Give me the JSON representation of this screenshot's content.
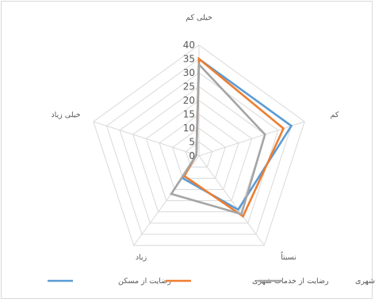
{
  "chart_data": {
    "type": "radar",
    "title": "",
    "categories": [
      "خیلی کم",
      "کم",
      "نسبتاً",
      "زیاد",
      "خیلی زیاد"
    ],
    "r_ticks": [
      0,
      5,
      10,
      15,
      20,
      25,
      30,
      35,
      40
    ],
    "rlim": [
      0,
      40
    ],
    "grid": true,
    "legend_position": "bottom",
    "series": [
      {
        "name": "رضایت از مسکن",
        "color": "#5b9bd5",
        "values": [
          35,
          35,
          24,
          10,
          1
        ]
      },
      {
        "name": "رضایت از خدمات شهری",
        "color": "#ed7d31",
        "values": [
          35,
          32,
          27,
          9,
          1
        ]
      },
      {
        "name": "رضایت از فضاهای شهری",
        "color": "#a5a5a5",
        "values": [
          33,
          25,
          26,
          17,
          1
        ]
      }
    ]
  }
}
